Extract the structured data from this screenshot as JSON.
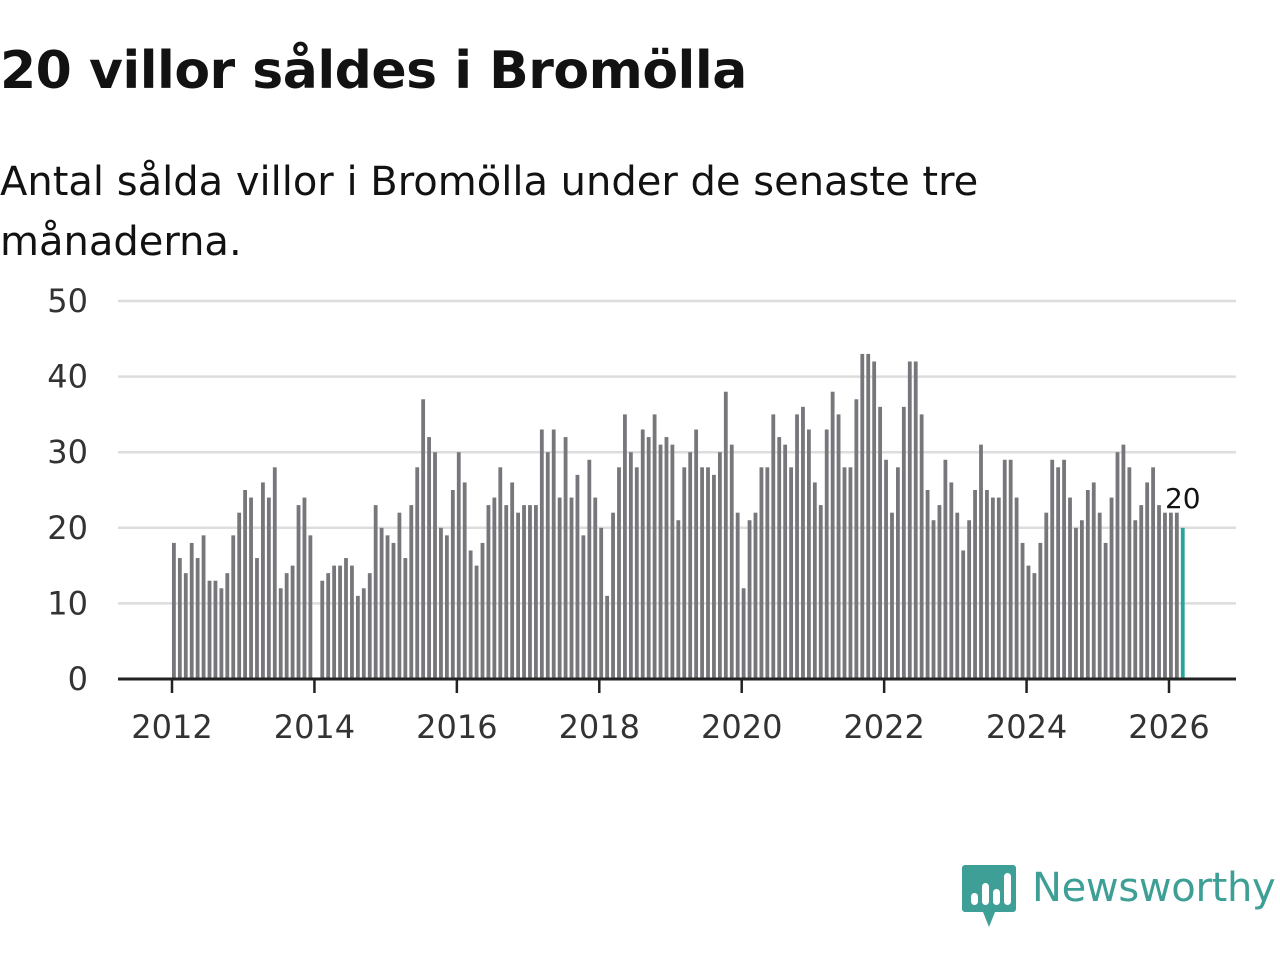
{
  "header": {
    "title": "20 villor såldes i Bromölla",
    "subtitle": "Antal sålda villor i Bromölla under de senaste tre månaderna."
  },
  "chart_data": {
    "type": "bar",
    "title": "20 villor såldes i Bromölla",
    "subtitle": "Antal sålda villor i Bromölla under de senaste tre månaderna.",
    "xlabel": "",
    "ylabel": "",
    "ylim": [
      0,
      50
    ],
    "yticks": [
      0,
      10,
      20,
      30,
      40,
      50
    ],
    "xticks": [
      {
        "year": 2012,
        "label": "2012"
      },
      {
        "year": 2014,
        "label": "2014"
      },
      {
        "year": 2016,
        "label": "2016"
      },
      {
        "year": 2018,
        "label": "2018"
      },
      {
        "year": 2020,
        "label": "2020"
      },
      {
        "year": 2022,
        "label": "2022"
      },
      {
        "year": 2024,
        "label": "2024"
      },
      {
        "year": 2026,
        "label": "2026"
      }
    ],
    "grid": true,
    "start": {
      "year": 2012,
      "month": 1
    },
    "frequency": "monthly",
    "colors": {
      "bar": "#76767b",
      "highlight": "#26a69a",
      "grid": "#dddddd",
      "axis": "#222222"
    },
    "highlight_last": true,
    "last_value_label": "20",
    "values": [
      18,
      16,
      14,
      18,
      16,
      19,
      13,
      13,
      12,
      14,
      19,
      22,
      25,
      24,
      16,
      26,
      24,
      28,
      12,
      14,
      15,
      23,
      24,
      19,
      0,
      13,
      14,
      15,
      15,
      16,
      15,
      11,
      12,
      14,
      23,
      20,
      19,
      18,
      22,
      16,
      23,
      28,
      37,
      32,
      30,
      20,
      19,
      25,
      30,
      26,
      17,
      15,
      18,
      23,
      24,
      28,
      23,
      26,
      22,
      23,
      23,
      23,
      33,
      30,
      33,
      24,
      32,
      24,
      27,
      19,
      29,
      24,
      20,
      11,
      22,
      28,
      35,
      30,
      28,
      33,
      32,
      35,
      31,
      32,
      31,
      21,
      28,
      30,
      33,
      28,
      28,
      27,
      30,
      38,
      31,
      22,
      12,
      21,
      22,
      28,
      28,
      35,
      32,
      31,
      28,
      35,
      36,
      33,
      26,
      23,
      33,
      38,
      35,
      28,
      28,
      37,
      43,
      43,
      42,
      36,
      29,
      22,
      28,
      36,
      42,
      42,
      35,
      25,
      21,
      23,
      29,
      26,
      22,
      17,
      21,
      25,
      31,
      25,
      24,
      24,
      29,
      29,
      24,
      18,
      15,
      14,
      18,
      22,
      29,
      28,
      29,
      24,
      20,
      21,
      25,
      26,
      22,
      18,
      24,
      30,
      31,
      28,
      21,
      23,
      26,
      28,
      23,
      22,
      22,
      22,
      20
    ]
  },
  "brand": {
    "name": "Newsworthy",
    "color": "#3d9f96",
    "icon": "newsworthy-bar-chart-icon"
  }
}
